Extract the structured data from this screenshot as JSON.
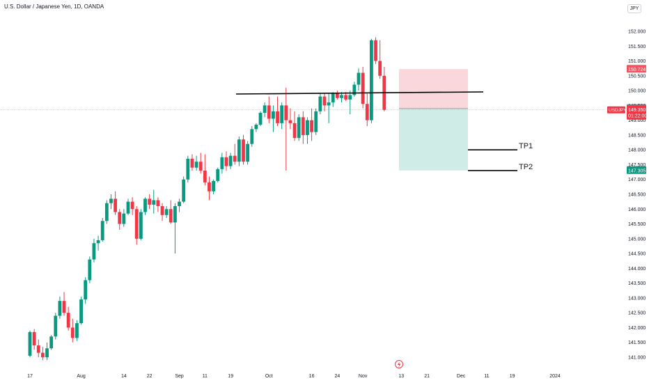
{
  "header": {
    "title": "U.S. Dollar / Japanese Yen, 1D, OANDA",
    "currency": "JPY"
  },
  "chart_data": {
    "type": "candlestick",
    "title": "U.S. Dollar / Japanese Yen, 1D, OANDA",
    "symbol": "USDJPY",
    "timeframe": "1D",
    "ylim": [
      140.8,
      152.4
    ],
    "yticks": [
      "141.000",
      "141.500",
      "142.000",
      "142.500",
      "143.000",
      "143.500",
      "144.000",
      "144.500",
      "145.000",
      "145.500",
      "146.000",
      "146.500",
      "147.000",
      "147.500",
      "148.000",
      "148.500",
      "149.000",
      "149.500",
      "150.000",
      "150.500",
      "151.000",
      "151.500",
      "152.000"
    ],
    "xticks": [
      {
        "label": "17",
        "bar": 0
      },
      {
        "label": "Aug",
        "bar": 12
      },
      {
        "label": "14",
        "bar": 22
      },
      {
        "label": "22",
        "bar": 28
      },
      {
        "label": "Sep",
        "bar": 35
      },
      {
        "label": "11",
        "bar": 41
      },
      {
        "label": "19",
        "bar": 47
      },
      {
        "label": "Oct",
        "bar": 56
      },
      {
        "label": "16",
        "bar": 66
      },
      {
        "label": "24",
        "bar": 72
      },
      {
        "label": "Nov",
        "bar": 78
      },
      {
        "label": "13",
        "bar": 87
      },
      {
        "label": "21",
        "bar": 93
      },
      {
        "label": "Dec",
        "bar": 101
      },
      {
        "label": "11",
        "bar": 107
      },
      {
        "label": "19",
        "bar": 113
      },
      {
        "label": "2024",
        "bar": 123
      }
    ],
    "candles": [
      {
        "o": 141.05,
        "h": 141.9,
        "l": 141.0,
        "c": 141.85
      },
      {
        "o": 141.85,
        "h": 141.95,
        "l": 141.25,
        "c": 141.4
      },
      {
        "o": 141.4,
        "h": 141.6,
        "l": 141.0,
        "c": 141.15
      },
      {
        "o": 141.15,
        "h": 141.35,
        "l": 140.9,
        "c": 141.0
      },
      {
        "o": 141.0,
        "h": 141.5,
        "l": 140.9,
        "c": 141.3
      },
      {
        "o": 141.3,
        "h": 141.75,
        "l": 141.25,
        "c": 141.7
      },
      {
        "o": 141.7,
        "h": 142.5,
        "l": 141.6,
        "c": 142.4
      },
      {
        "o": 142.4,
        "h": 143.05,
        "l": 142.3,
        "c": 142.9
      },
      {
        "o": 142.9,
        "h": 143.2,
        "l": 142.4,
        "c": 142.5
      },
      {
        "o": 142.5,
        "h": 142.7,
        "l": 141.9,
        "c": 142.0
      },
      {
        "o": 142.0,
        "h": 142.3,
        "l": 141.5,
        "c": 141.65
      },
      {
        "o": 141.65,
        "h": 142.25,
        "l": 141.55,
        "c": 142.15
      },
      {
        "o": 142.15,
        "h": 143.05,
        "l": 142.1,
        "c": 142.95
      },
      {
        "o": 142.95,
        "h": 143.7,
        "l": 142.8,
        "c": 143.6
      },
      {
        "o": 143.6,
        "h": 144.4,
        "l": 143.5,
        "c": 144.3
      },
      {
        "o": 144.3,
        "h": 145.0,
        "l": 144.2,
        "c": 144.85
      },
      {
        "o": 144.85,
        "h": 145.1,
        "l": 144.6,
        "c": 144.95
      },
      {
        "o": 144.95,
        "h": 145.7,
        "l": 144.9,
        "c": 145.6
      },
      {
        "o": 145.6,
        "h": 146.3,
        "l": 145.5,
        "c": 146.2
      },
      {
        "o": 146.2,
        "h": 146.5,
        "l": 146.0,
        "c": 146.35
      },
      {
        "o": 146.35,
        "h": 146.6,
        "l": 145.8,
        "c": 145.9
      },
      {
        "o": 145.9,
        "h": 146.0,
        "l": 145.3,
        "c": 145.5
      },
      {
        "o": 145.5,
        "h": 146.0,
        "l": 145.4,
        "c": 145.85
      },
      {
        "o": 145.85,
        "h": 146.35,
        "l": 145.8,
        "c": 146.25
      },
      {
        "o": 146.25,
        "h": 146.4,
        "l": 145.8,
        "c": 146.0
      },
      {
        "o": 146.0,
        "h": 146.1,
        "l": 144.8,
        "c": 145.0
      },
      {
        "o": 145.0,
        "h": 146.0,
        "l": 144.95,
        "c": 145.9
      },
      {
        "o": 145.9,
        "h": 146.4,
        "l": 145.8,
        "c": 146.35
      },
      {
        "o": 146.35,
        "h": 146.5,
        "l": 146.0,
        "c": 146.15
      },
      {
        "o": 146.15,
        "h": 146.65,
        "l": 145.85,
        "c": 146.3
      },
      {
        "o": 146.3,
        "h": 146.4,
        "l": 145.9,
        "c": 146.1
      },
      {
        "o": 146.1,
        "h": 146.2,
        "l": 145.6,
        "c": 145.8
      },
      {
        "o": 145.8,
        "h": 146.1,
        "l": 145.7,
        "c": 146.0
      },
      {
        "o": 146.0,
        "h": 146.3,
        "l": 145.5,
        "c": 145.55
      },
      {
        "o": 145.55,
        "h": 146.2,
        "l": 144.5,
        "c": 146.1
      },
      {
        "o": 146.1,
        "h": 146.35,
        "l": 145.9,
        "c": 146.25
      },
      {
        "o": 146.25,
        "h": 147.1,
        "l": 146.2,
        "c": 147.0
      },
      {
        "o": 147.0,
        "h": 147.8,
        "l": 146.9,
        "c": 147.7
      },
      {
        "o": 147.7,
        "h": 147.85,
        "l": 147.3,
        "c": 147.4
      },
      {
        "o": 147.4,
        "h": 147.8,
        "l": 147.3,
        "c": 147.6
      },
      {
        "o": 147.6,
        "h": 147.9,
        "l": 147.2,
        "c": 147.3
      },
      {
        "o": 147.3,
        "h": 147.85,
        "l": 146.8,
        "c": 146.9
      },
      {
        "o": 146.9,
        "h": 147.1,
        "l": 146.3,
        "c": 146.6
      },
      {
        "o": 146.6,
        "h": 147.0,
        "l": 146.5,
        "c": 146.95
      },
      {
        "o": 146.95,
        "h": 147.4,
        "l": 146.9,
        "c": 147.35
      },
      {
        "o": 147.35,
        "h": 147.9,
        "l": 147.2,
        "c": 147.75
      },
      {
        "o": 147.75,
        "h": 147.95,
        "l": 147.3,
        "c": 147.45
      },
      {
        "o": 147.45,
        "h": 147.9,
        "l": 147.35,
        "c": 147.8
      },
      {
        "o": 147.8,
        "h": 148.2,
        "l": 147.5,
        "c": 147.6
      },
      {
        "o": 147.6,
        "h": 148.45,
        "l": 147.45,
        "c": 148.35
      },
      {
        "o": 148.35,
        "h": 148.5,
        "l": 147.5,
        "c": 147.6
      },
      {
        "o": 147.6,
        "h": 148.3,
        "l": 147.5,
        "c": 148.2
      },
      {
        "o": 148.2,
        "h": 148.8,
        "l": 148.1,
        "c": 148.7
      },
      {
        "o": 148.7,
        "h": 148.9,
        "l": 148.6,
        "c": 148.85
      },
      {
        "o": 148.85,
        "h": 149.3,
        "l": 148.8,
        "c": 149.25
      },
      {
        "o": 149.25,
        "h": 149.6,
        "l": 149.1,
        "c": 149.5
      },
      {
        "o": 149.5,
        "h": 149.8,
        "l": 148.9,
        "c": 149.05
      },
      {
        "o": 149.05,
        "h": 149.5,
        "l": 148.6,
        "c": 149.3
      },
      {
        "o": 149.3,
        "h": 149.8,
        "l": 148.8,
        "c": 148.9
      },
      {
        "o": 148.9,
        "h": 149.6,
        "l": 148.7,
        "c": 149.5
      },
      {
        "o": 149.5,
        "h": 150.1,
        "l": 147.3,
        "c": 149.0
      },
      {
        "o": 149.0,
        "h": 149.4,
        "l": 148.7,
        "c": 148.9
      },
      {
        "o": 148.9,
        "h": 149.3,
        "l": 148.3,
        "c": 148.4
      },
      {
        "o": 148.4,
        "h": 149.2,
        "l": 148.3,
        "c": 149.1
      },
      {
        "o": 149.1,
        "h": 149.3,
        "l": 148.2,
        "c": 148.5
      },
      {
        "o": 148.5,
        "h": 149.1,
        "l": 148.2,
        "c": 149.0
      },
      {
        "o": 149.0,
        "h": 149.4,
        "l": 148.3,
        "c": 148.6
      },
      {
        "o": 148.6,
        "h": 149.4,
        "l": 148.5,
        "c": 149.3
      },
      {
        "o": 149.3,
        "h": 149.9,
        "l": 149.2,
        "c": 149.8
      },
      {
        "o": 149.8,
        "h": 149.9,
        "l": 149.3,
        "c": 149.5
      },
      {
        "o": 149.5,
        "h": 149.9,
        "l": 148.9,
        "c": 149.6
      },
      {
        "o": 149.6,
        "h": 149.95,
        "l": 149.45,
        "c": 149.9
      },
      {
        "o": 149.9,
        "h": 150.0,
        "l": 149.7,
        "c": 149.75
      },
      {
        "o": 149.75,
        "h": 149.95,
        "l": 149.6,
        "c": 149.85
      },
      {
        "o": 149.85,
        "h": 149.95,
        "l": 149.65,
        "c": 149.7
      },
      {
        "o": 149.7,
        "h": 150.0,
        "l": 149.2,
        "c": 149.85
      },
      {
        "o": 149.85,
        "h": 150.3,
        "l": 149.8,
        "c": 150.2
      },
      {
        "o": 150.2,
        "h": 150.75,
        "l": 150.0,
        "c": 150.6
      },
      {
        "o": 150.6,
        "h": 150.8,
        "l": 149.4,
        "c": 149.55
      },
      {
        "o": 149.55,
        "h": 149.9,
        "l": 148.8,
        "c": 149.0
      },
      {
        "o": 149.0,
        "h": 151.75,
        "l": 148.9,
        "c": 151.7
      },
      {
        "o": 151.7,
        "h": 151.8,
        "l": 150.9,
        "c": 151.0
      },
      {
        "o": 151.0,
        "h": 151.7,
        "l": 150.4,
        "c": 150.5
      },
      {
        "o": 150.5,
        "h": 150.8,
        "l": 149.3,
        "c": 149.35
      }
    ],
    "resistance_level": 149.92,
    "position": {
      "entry": 149.396,
      "stop": 150.724,
      "target": 147.305,
      "tp1": 148.0,
      "tp2": 147.3
    },
    "annotations": [
      "TP1",
      "TP2"
    ],
    "price_labels": [
      {
        "text": "150.724",
        "color": "#f7525f"
      },
      {
        "text": "149.396",
        "color": "#787b86"
      },
      {
        "text": "147.305",
        "color": "#089981"
      }
    ],
    "last_price": {
      "symbol": "USDJPY",
      "price": "149.350",
      "countdown": "01:22:00",
      "color": "#f23645"
    },
    "colors": {
      "up": "#089981",
      "down": "#f23645",
      "stop_zone": "#f7c9cd",
      "target_zone": "#bfe6dd",
      "axis_text": "#131722",
      "grid": "none"
    },
    "grid": false
  }
}
